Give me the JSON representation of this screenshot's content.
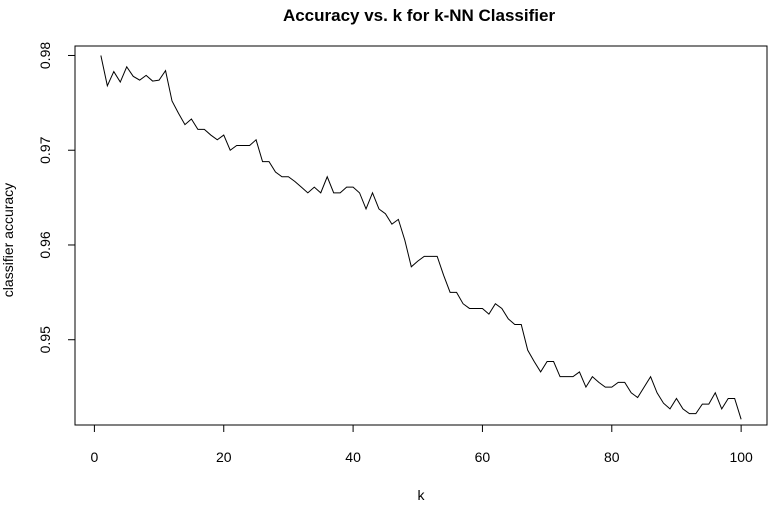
{
  "chart_data": {
    "type": "line",
    "title": "Accuracy vs. k for k-NN Classifier",
    "xlabel": "k",
    "ylabel": "classifier accuracy",
    "xlim": [
      -3,
      104
    ],
    "ylim": [
      0.941,
      0.981
    ],
    "x_ticks": [
      0,
      20,
      40,
      60,
      80,
      100
    ],
    "x_tick_labels": [
      "0",
      "20",
      "40",
      "60",
      "80",
      "100"
    ],
    "y_ticks": [
      0.95,
      0.96,
      0.97,
      0.98
    ],
    "y_tick_labels": [
      "0.95",
      "0.96",
      "0.97",
      "0.98"
    ],
    "grid": false,
    "line_color": "#000000",
    "series": [
      {
        "x": [
          1,
          2,
          3,
          4,
          5,
          6,
          7,
          8,
          9,
          10,
          11,
          12,
          13,
          14,
          15,
          16,
          17,
          18,
          19,
          20,
          21,
          22,
          23,
          24,
          25,
          26,
          27,
          28,
          29,
          30,
          31,
          32,
          33,
          34,
          35,
          36,
          37,
          38,
          39,
          40,
          41,
          42,
          43,
          44,
          45,
          46,
          47,
          48,
          49,
          50,
          51,
          52,
          53,
          54,
          55,
          56,
          57,
          58,
          59,
          60,
          61,
          62,
          63,
          64,
          65,
          66,
          67,
          68,
          69,
          70,
          71,
          72,
          73,
          74,
          75,
          76,
          77,
          78,
          79,
          80,
          81,
          82,
          83,
          84,
          85,
          86,
          87,
          88,
          89,
          90,
          91,
          92,
          93,
          94,
          95,
          96,
          97,
          98,
          99,
          100
        ],
        "values": [
          0.98,
          0.9768,
          0.9783,
          0.9772,
          0.9788,
          0.9778,
          0.9774,
          0.9779,
          0.9773,
          0.9774,
          0.9784,
          0.9752,
          0.9739,
          0.9727,
          0.9733,
          0.9722,
          0.9722,
          0.9716,
          0.9711,
          0.9716,
          0.97,
          0.9705,
          0.9705,
          0.9705,
          0.9711,
          0.9688,
          0.9688,
          0.9677,
          0.9672,
          0.9672,
          0.9667,
          0.9661,
          0.9655,
          0.9661,
          0.9655,
          0.9672,
          0.9655,
          0.9655,
          0.9661,
          0.9661,
          0.9655,
          0.9638,
          0.9655,
          0.9638,
          0.9633,
          0.9622,
          0.9627,
          0.9605,
          0.9577,
          0.9583,
          0.9588,
          0.9588,
          0.9588,
          0.9568,
          0.955,
          0.955,
          0.9538,
          0.9533,
          0.9533,
          0.9533,
          0.9527,
          0.9538,
          0.9533,
          0.9522,
          0.9516,
          0.9516,
          0.9489,
          0.9477,
          0.9466,
          0.9477,
          0.9477,
          0.9461,
          0.9461,
          0.9461,
          0.9466,
          0.945,
          0.9461,
          0.9455,
          0.945,
          0.945,
          0.9455,
          0.9455,
          0.9444,
          0.9439,
          0.945,
          0.9461,
          0.9444,
          0.9433,
          0.9427,
          0.9438,
          0.9427,
          0.9422,
          0.9422,
          0.9432,
          0.9432,
          0.9444,
          0.9427,
          0.9438,
          0.9438,
          0.9416
        ]
      }
    ]
  }
}
